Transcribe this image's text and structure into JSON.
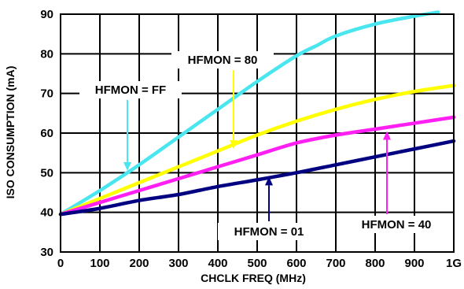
{
  "chart_data": {
    "type": "line",
    "xlabel": "CHCLK FREQ (MHz)",
    "ylabel": "ISO CONSUMPTION (mA)",
    "xlim": [
      0,
      1000
    ],
    "ylim": [
      30,
      90
    ],
    "x_ticks": [
      0,
      100,
      200,
      300,
      400,
      500,
      600,
      700,
      800,
      900,
      1000
    ],
    "x_tick_labels": [
      "0",
      "100",
      "200",
      "300",
      "400",
      "500",
      "600",
      "700",
      "800",
      "900",
      "1G"
    ],
    "y_ticks": [
      30,
      40,
      50,
      60,
      70,
      80,
      90
    ],
    "y_tick_labels": [
      "30",
      "40",
      "50",
      "60",
      "70",
      "80",
      "90"
    ],
    "grid": true,
    "series": [
      {
        "name": "HFMON = FF",
        "color": "#49e6f0",
        "x": [
          0,
          100,
          200,
          300,
          400,
          500,
          600,
          650,
          700,
          800,
          900,
          960
        ],
        "y": [
          39.5,
          45.5,
          52,
          59,
          66,
          73,
          79.5,
          82,
          84.5,
          87.5,
          89.5,
          90.5
        ]
      },
      {
        "name": "HFMON = 80",
        "color": "#ffff00",
        "x": [
          0,
          100,
          200,
          300,
          400,
          500,
          600,
          700,
          800,
          900,
          1000
        ],
        "y": [
          39.5,
          43.5,
          47.5,
          51.5,
          55.5,
          59.5,
          63,
          66,
          68.5,
          70.5,
          72
        ]
      },
      {
        "name": "HFMON = 40",
        "color": "#ff1ff2",
        "x": [
          0,
          100,
          200,
          300,
          400,
          500,
          600,
          700,
          800,
          900,
          1000
        ],
        "y": [
          39.5,
          42.5,
          45.5,
          48.5,
          51.5,
          54.5,
          57.5,
          59.5,
          61,
          62.5,
          64
        ]
      },
      {
        "name": "HFMON = 01",
        "color": "#000080",
        "x": [
          0,
          100,
          200,
          300,
          400,
          500,
          600,
          700,
          800,
          900,
          1000
        ],
        "y": [
          39.5,
          41,
          43,
          44.5,
          46.5,
          48.2,
          50,
          52,
          54,
          56,
          58
        ]
      }
    ],
    "annotations": [
      {
        "text": "HFMON = FF",
        "series": "HFMON = FF",
        "arrow_to": [
          170,
          50.5
        ]
      },
      {
        "text": "HFMON = 80",
        "series": "HFMON = 80",
        "arrow_to": [
          440,
          56
        ]
      },
      {
        "text": "HFMON = 01",
        "series": "HFMON = 01",
        "arrow_to": [
          530,
          49
        ]
      },
      {
        "text": "HFMON = 40",
        "series": "HFMON = 40",
        "arrow_to": [
          830,
          60.5
        ]
      }
    ]
  }
}
